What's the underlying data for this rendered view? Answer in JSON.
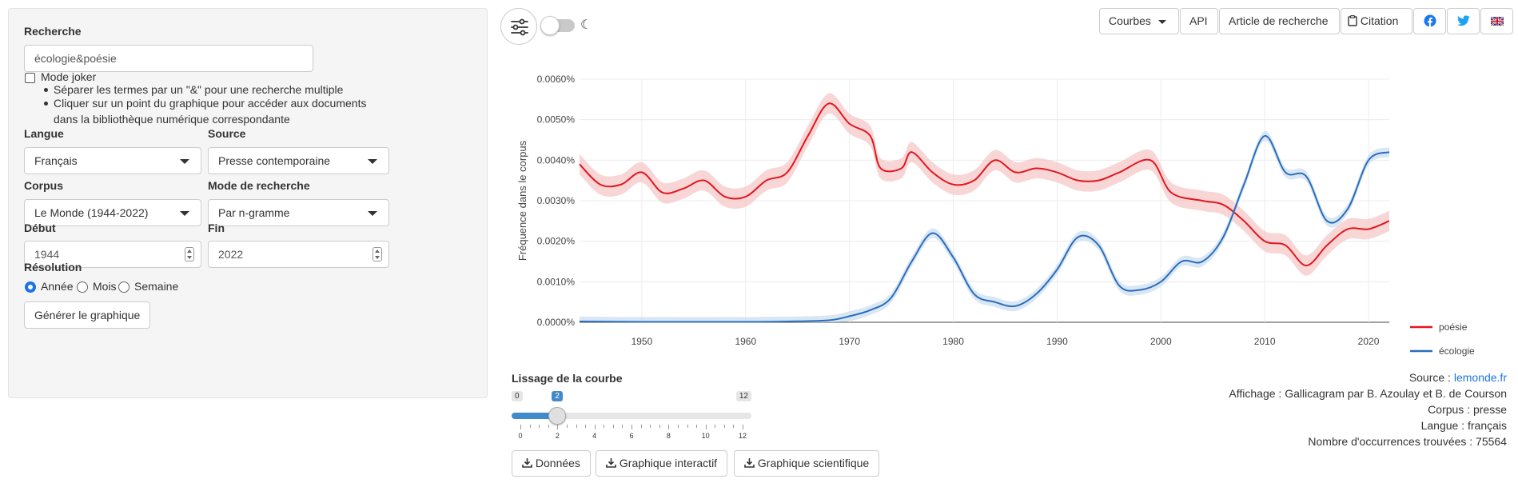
{
  "sidebar": {
    "search_label": "Recherche",
    "search_value": "écologie&poésie",
    "joker_label": "Mode joker",
    "tips": [
      "Séparer les termes par un \"&\" pour une recherche multiple",
      "Cliquer sur un point du graphique pour accéder aux documents dans la bibliothèque numérique correspondante"
    ],
    "langue_label": "Langue",
    "langue_value": "Français",
    "source_label": "Source",
    "source_value": "Presse contemporaine",
    "corpus_label": "Corpus",
    "corpus_value": "Le Monde (1944-2022)",
    "mode_label": "Mode de recherche",
    "mode_value": "Par n-gramme",
    "debut_label": "Début",
    "debut_value": "1944",
    "fin_label": "Fin",
    "fin_value": "2022",
    "resolution_label": "Résolution",
    "resolution_options": [
      "Année",
      "Mois",
      "Semaine"
    ],
    "resolution_selected": "Année",
    "generate_label": "Générer le graphique"
  },
  "toolbar": {
    "courbes_label": "Courbes",
    "api_label": "API",
    "article_label": "Article de recherche",
    "citation_label": "Citation",
    "moon_glyph": "☾",
    "facebook_color": "#1877f2",
    "twitter_color": "#1da1f2"
  },
  "chart_data": {
    "type": "line",
    "ylabel": "Fréquence dans le corpus",
    "xlabel": "",
    "xlim": [
      1944,
      2022
    ],
    "ylim": [
      0,
      0.006
    ],
    "x_ticks": [
      1950,
      1960,
      1970,
      1980,
      1990,
      2000,
      2010,
      2020
    ],
    "y_ticks": [
      "0.0000%",
      "0.0010%",
      "0.0020%",
      "0.0030%",
      "0.0040%",
      "0.0050%",
      "0.0060%"
    ],
    "legend_position": "bottom-right",
    "grid": true,
    "series": [
      {
        "name": "poésie",
        "color": "#e3161f",
        "band_color": "#f7c5c5",
        "points": [
          [
            1944,
            0.0039
          ],
          [
            1946,
            0.0034
          ],
          [
            1948,
            0.0034
          ],
          [
            1950,
            0.0037
          ],
          [
            1952,
            0.0032
          ],
          [
            1954,
            0.0033
          ],
          [
            1956,
            0.0035
          ],
          [
            1958,
            0.0031
          ],
          [
            1960,
            0.0031
          ],
          [
            1962,
            0.0035
          ],
          [
            1964,
            0.0037
          ],
          [
            1966,
            0.0046
          ],
          [
            1968,
            0.0054
          ],
          [
            1970,
            0.0049
          ],
          [
            1972,
            0.0046
          ],
          [
            1973,
            0.0038
          ],
          [
            1975,
            0.0038
          ],
          [
            1976,
            0.0042
          ],
          [
            1978,
            0.0037
          ],
          [
            1980,
            0.0034
          ],
          [
            1982,
            0.0035
          ],
          [
            1984,
            0.004
          ],
          [
            1986,
            0.0037
          ],
          [
            1988,
            0.0038
          ],
          [
            1990,
            0.0037
          ],
          [
            1992,
            0.0035
          ],
          [
            1994,
            0.0035
          ],
          [
            1996,
            0.0037
          ],
          [
            1999,
            0.004
          ],
          [
            2001,
            0.0032
          ],
          [
            2004,
            0.003
          ],
          [
            2006,
            0.0029
          ],
          [
            2008,
            0.0025
          ],
          [
            2010,
            0.002
          ],
          [
            2012,
            0.0019
          ],
          [
            2014,
            0.0014
          ],
          [
            2016,
            0.0019
          ],
          [
            2018,
            0.0023
          ],
          [
            2020,
            0.0023
          ],
          [
            2022,
            0.0025
          ]
        ]
      },
      {
        "name": "écologie",
        "color": "#2a6ebb",
        "band_color": "#c9dcf0",
        "points": [
          [
            1944,
            2e-05
          ],
          [
            1950,
            1e-05
          ],
          [
            1960,
            1e-05
          ],
          [
            1964,
            2e-05
          ],
          [
            1968,
            5e-05
          ],
          [
            1970,
            0.00015
          ],
          [
            1972,
            0.0003
          ],
          [
            1974,
            0.0006
          ],
          [
            1976,
            0.0015
          ],
          [
            1978,
            0.0022
          ],
          [
            1980,
            0.0016
          ],
          [
            1982,
            0.0007
          ],
          [
            1984,
            0.0005
          ],
          [
            1986,
            0.0004
          ],
          [
            1988,
            0.0007
          ],
          [
            1990,
            0.0013
          ],
          [
            1992,
            0.0021
          ],
          [
            1994,
            0.0019
          ],
          [
            1996,
            0.0009
          ],
          [
            1998,
            0.0008
          ],
          [
            2000,
            0.001
          ],
          [
            2002,
            0.0015
          ],
          [
            2004,
            0.0015
          ],
          [
            2006,
            0.0021
          ],
          [
            2008,
            0.0034
          ],
          [
            2010,
            0.0046
          ],
          [
            2012,
            0.0037
          ],
          [
            2014,
            0.0036
          ],
          [
            2016,
            0.0025
          ],
          [
            2018,
            0.0028
          ],
          [
            2020,
            0.004
          ],
          [
            2022,
            0.0042
          ]
        ]
      }
    ]
  },
  "smoothing": {
    "label": "Lissage de la courbe",
    "min": 0,
    "max": 12,
    "value": 2,
    "ticks": [
      "0",
      "2",
      "4",
      "6",
      "8",
      "10",
      "12"
    ]
  },
  "downloads": {
    "donnees": "Données",
    "interactif": "Graphique interactif",
    "scientifique": "Graphique scientifique"
  },
  "info": {
    "source_prefix": "Source : ",
    "source_link": "lemonde.fr",
    "affichage": "Affichage : Gallicagram par B. Azoulay et B. de Courson",
    "corpus": "Corpus : presse",
    "langue": "Langue : français",
    "occurrences": "Nombre d'occurrences trouvées : 75564"
  }
}
